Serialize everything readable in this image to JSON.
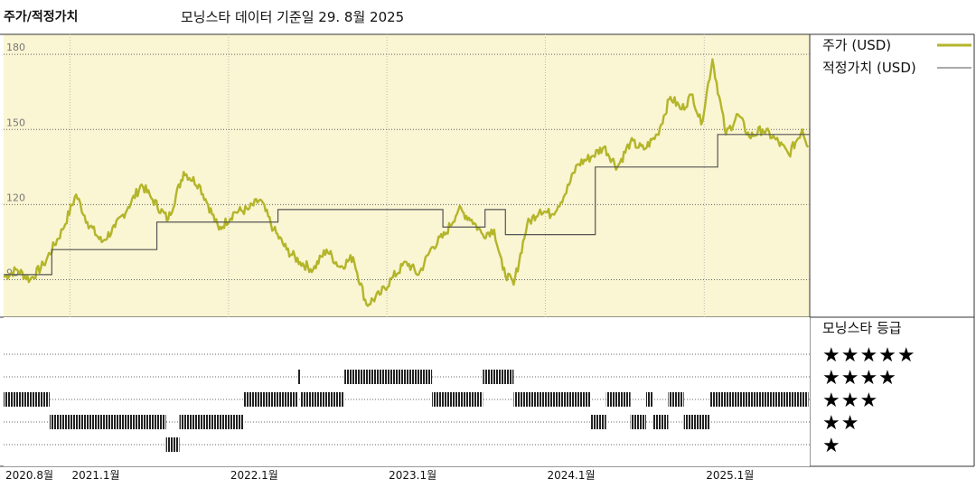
{
  "header": {
    "title": "주가/적정가치",
    "subtitle": "모닝스타 데이터 기준일 29. 8월 2025"
  },
  "legend": {
    "price": "주가 (USD)",
    "fair_value": "적정가치 (USD)",
    "rating_title": "모닝스타 등급"
  },
  "colors": {
    "price_line": "#b3b52a",
    "fair_value_line": "#555555",
    "plot_bg": "#faf5d2",
    "rating_bar": "#222222"
  },
  "chart_data": [
    {
      "type": "line",
      "title": "주가/적정가치",
      "ylim": [
        75,
        188
      ],
      "yticks": [
        "180",
        "150",
        "120",
        "90"
      ],
      "ytick_values": [
        180,
        150,
        120,
        90
      ],
      "xlim": [
        "2020-08-01",
        "2025-09-01"
      ],
      "xticks": [
        "2020.8월",
        "2021.1월",
        "2022.1월",
        "2023.1월",
        "2024.1월",
        "2025.1월"
      ],
      "xtick_dates": [
        "2020-08-01",
        "2021-01-01",
        "2022-01-01",
        "2023-01-01",
        "2024-01-01",
        "2025-01-01"
      ],
      "series": [
        {
          "name": "주가 (USD)",
          "x": [
            "2020-08-01",
            "2020-09-01",
            "2020-10-01",
            "2020-11-01",
            "2020-12-15",
            "2021-01-15",
            "2021-02-10",
            "2021-03-15",
            "2021-04-15",
            "2021-05-15",
            "2021-06-15",
            "2021-07-10",
            "2021-08-15",
            "2021-09-20",
            "2021-10-25",
            "2021-11-15",
            "2021-12-10",
            "2022-01-15",
            "2022-02-15",
            "2022-03-15",
            "2022-04-15",
            "2022-05-15",
            "2022-06-15",
            "2022-07-15",
            "2022-08-15",
            "2022-09-15",
            "2022-10-15",
            "2022-11-15",
            "2022-12-15",
            "2023-01-15",
            "2023-02-15",
            "2023-03-15",
            "2023-04-15",
            "2023-05-15",
            "2023-06-15",
            "2023-07-15",
            "2023-08-10",
            "2023-09-05",
            "2023-09-25",
            "2023-10-20",
            "2023-11-20",
            "2023-12-20",
            "2024-01-15",
            "2024-02-15",
            "2024-03-15",
            "2024-04-15",
            "2024-05-15",
            "2024-06-15",
            "2024-07-15",
            "2024-08-15",
            "2024-09-15",
            "2024-10-15",
            "2024-11-10",
            "2024-12-05",
            "2024-12-25",
            "2025-01-20",
            "2025-02-20",
            "2025-03-20",
            "2025-04-15",
            "2025-05-15",
            "2025-06-15",
            "2025-07-15",
            "2025-08-15",
            "2025-08-29"
          ],
          "values": [
            91,
            94,
            90,
            96,
            110,
            124,
            113,
            105,
            111,
            119,
            128,
            122,
            114,
            133,
            128,
            120,
            110,
            117,
            118,
            122,
            110,
            102,
            97,
            94,
            102,
            95,
            99,
            80,
            84,
            91,
            97,
            92,
            103,
            108,
            118,
            114,
            108,
            110,
            94,
            88,
            112,
            118,
            116,
            124,
            136,
            139,
            143,
            135,
            145,
            142,
            148,
            163,
            158,
            164,
            152,
            178,
            148,
            156,
            147,
            150,
            146,
            140,
            150,
            143
          ]
        },
        {
          "name": "적정가치 (USD)",
          "step": true,
          "x": [
            "2020-08-01",
            "2020-11-20",
            "2021-07-20",
            "2022-04-25",
            "2023-05-10",
            "2023-08-15",
            "2023-10-01",
            "2024-04-25",
            "2025-02-01",
            "2025-09-01"
          ],
          "values": [
            92,
            102,
            113,
            118,
            111,
            118,
            108,
            135,
            148,
            148
          ]
        }
      ]
    },
    {
      "type": "timeline",
      "title": "모닝스타 등급",
      "levels": [
        5,
        4,
        3,
        2,
        1
      ],
      "level_labels": [
        "★★★★★",
        "★★★★",
        "★★★",
        "★★",
        "★"
      ],
      "periods": [
        {
          "start": "2020-08-01",
          "end": "2020-11-15",
          "stars": 3
        },
        {
          "start": "2020-11-15",
          "end": "2020-12-10",
          "stars": 2
        },
        {
          "start": "2020-12-10",
          "end": "2021-08-10",
          "stars": 2
        },
        {
          "start": "2021-08-10",
          "end": "2021-09-10",
          "stars": 1
        },
        {
          "start": "2021-09-10",
          "end": "2022-02-05",
          "stars": 2
        },
        {
          "start": "2022-02-05",
          "end": "2022-06-10",
          "stars": 3
        },
        {
          "start": "2022-06-10",
          "end": "2022-06-15",
          "stars": 4
        },
        {
          "start": "2022-06-15",
          "end": "2022-09-25",
          "stars": 3
        },
        {
          "start": "2022-09-25",
          "end": "2023-04-15",
          "stars": 4
        },
        {
          "start": "2023-04-15",
          "end": "2023-08-10",
          "stars": 3
        },
        {
          "start": "2023-08-10",
          "end": "2023-10-20",
          "stars": 4
        },
        {
          "start": "2023-10-20",
          "end": "2024-04-15",
          "stars": 3
        },
        {
          "start": "2024-04-15",
          "end": "2024-05-20",
          "stars": 2
        },
        {
          "start": "2024-05-20",
          "end": "2024-07-15",
          "stars": 3
        },
        {
          "start": "2024-07-15",
          "end": "2024-08-20",
          "stars": 2
        },
        {
          "start": "2024-08-20",
          "end": "2024-09-05",
          "stars": 3
        },
        {
          "start": "2024-09-05",
          "end": "2024-10-10",
          "stars": 2
        },
        {
          "start": "2024-10-10",
          "end": "2024-11-15",
          "stars": 3
        },
        {
          "start": "2024-11-15",
          "end": "2025-01-15",
          "stars": 2
        },
        {
          "start": "2025-01-15",
          "end": "2025-08-29",
          "stars": 3
        }
      ]
    }
  ]
}
